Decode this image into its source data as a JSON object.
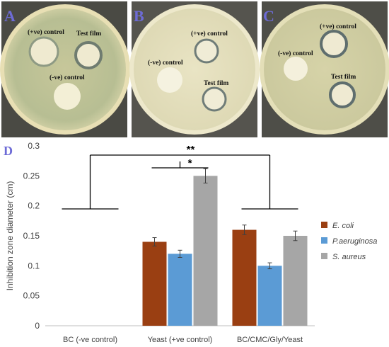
{
  "panels": {
    "a": {
      "letter": "A",
      "pos_label": "(+ve) control",
      "neg_label": "(-ve) control",
      "film_label": "Test film"
    },
    "b": {
      "letter": "B",
      "pos_label": "(+ve) control",
      "neg_label": "(-ve) control",
      "film_label": "Test film"
    },
    "c": {
      "letter": "C",
      "pos_label": "(+ve) control",
      "neg_label": "(-ve) control",
      "film_label": "Test film"
    },
    "d": {
      "letter": "D"
    }
  },
  "colors": {
    "e_coli": "#9A3F12",
    "p_aeruginosa": "#5B9BD5",
    "s_aureus": "#A6A6A6",
    "panel_letter": "#6D6BD6",
    "plate_agar_a": "#D9D2A3",
    "plate_agar_b": "#E8E2BE",
    "plate_agar_c": "#DAD6A8"
  },
  "significance": {
    "double": "**",
    "single": "*"
  },
  "chart_data": {
    "type": "bar",
    "title": "",
    "xlabel": "",
    "ylabel": "Inhibition zone diameter (cm)",
    "ylim": [
      0,
      0.3
    ],
    "yticks": [
      "0",
      "0.05",
      "0.1",
      "0.15",
      "0.2",
      "0.25",
      "0.3"
    ],
    "categories": [
      "BC (-ve control)",
      "Yeast (+ve control)",
      "BC/CMC/Gly/Yeast"
    ],
    "series": [
      {
        "name": "E. coli",
        "values": [
          0,
          0.14,
          0.16
        ],
        "errors": [
          0,
          0.007,
          0.008
        ]
      },
      {
        "name": "P.aeruginosa",
        "values": [
          0,
          0.12,
          0.1
        ],
        "errors": [
          0,
          0.006,
          0.005
        ]
      },
      {
        "name": "S. aureus",
        "values": [
          0,
          0.25,
          0.15
        ],
        "errors": [
          0,
          0.012,
          0.008
        ]
      }
    ],
    "legend": "right",
    "grid": false
  }
}
